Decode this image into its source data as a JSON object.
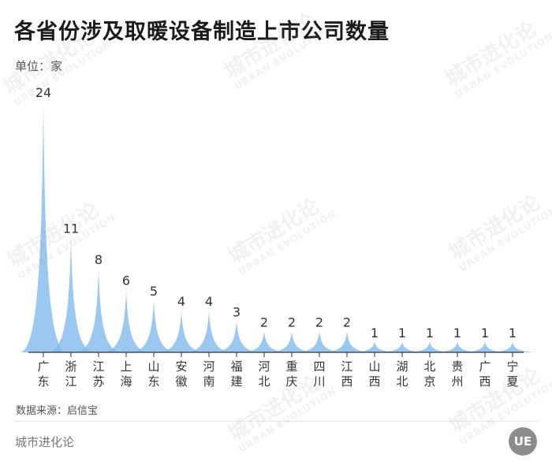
{
  "title": "各省份涉及取暖设备制造上市公司数量",
  "unit_label": "单位：家",
  "source": "数据来源：启信宝",
  "brand": "城市进化论",
  "logo_text": "UE",
  "watermark": {
    "cn": "城市进化论",
    "en": "URBAN EVOLUTION"
  },
  "colors": {
    "fill": "#7db8ec",
    "axis": "#333333",
    "label": "#333333"
  },
  "chart_data": {
    "type": "area",
    "categories": [
      "广东",
      "浙江",
      "江苏",
      "上海",
      "山东",
      "安徽",
      "河南",
      "福建",
      "河北",
      "重庆",
      "四川",
      "江西",
      "山西",
      "湖北",
      "北京",
      "贵州",
      "广西",
      "宁夏"
    ],
    "values": [
      24,
      11,
      8,
      6,
      5,
      4,
      4,
      3,
      2,
      2,
      2,
      2,
      1,
      1,
      1,
      1,
      1,
      1
    ],
    "ylim": [
      0,
      24
    ],
    "grid": false,
    "legend": "none",
    "data_labels": true
  }
}
